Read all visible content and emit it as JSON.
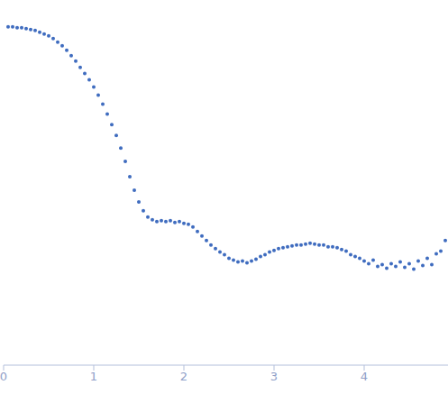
{
  "chart_data": {
    "type": "scatter",
    "color": "#3f6cbf",
    "marker": "circle",
    "tick_labels": "x",
    "xlim": [
      0,
      4.93
    ],
    "xticks": [
      0,
      1,
      2,
      3,
      4
    ],
    "ylim": [
      0.23,
      4.3
    ],
    "yticks": [
      1,
      2,
      3,
      4
    ],
    "x": [
      0.05,
      0.1,
      0.15,
      0.2,
      0.25,
      0.3,
      0.35,
      0.4,
      0.45,
      0.5,
      0.55,
      0.6,
      0.65,
      0.7,
      0.75,
      0.8,
      0.85,
      0.9,
      0.95,
      1.0,
      1.05,
      1.1,
      1.15,
      1.2,
      1.25,
      1.3,
      1.35,
      1.4,
      1.45,
      1.5,
      1.55,
      1.6,
      1.65,
      1.7,
      1.75,
      1.8,
      1.85,
      1.9,
      1.95,
      2.0,
      2.05,
      2.1,
      2.15,
      2.2,
      2.25,
      2.3,
      2.35,
      2.4,
      2.45,
      2.5,
      2.55,
      2.6,
      2.65,
      2.7,
      2.75,
      2.8,
      2.85,
      2.9,
      2.95,
      3.0,
      3.05,
      3.1,
      3.15,
      3.2,
      3.25,
      3.3,
      3.35,
      3.4,
      3.45,
      3.5,
      3.55,
      3.6,
      3.65,
      3.7,
      3.75,
      3.8,
      3.85,
      3.9,
      3.95,
      4.0,
      4.05,
      4.1,
      4.15,
      4.2,
      4.25,
      4.3,
      4.35,
      4.4,
      4.45,
      4.5,
      4.55,
      4.6,
      4.65,
      4.7,
      4.75,
      4.8,
      4.85,
      4.9
    ],
    "values": [
      4.0,
      4.0,
      3.99,
      3.99,
      3.98,
      3.97,
      3.96,
      3.94,
      3.92,
      3.9,
      3.87,
      3.83,
      3.79,
      3.74,
      3.68,
      3.62,
      3.55,
      3.48,
      3.41,
      3.33,
      3.24,
      3.14,
      3.03,
      2.91,
      2.79,
      2.65,
      2.5,
      2.33,
      2.18,
      2.05,
      1.95,
      1.88,
      1.85,
      1.83,
      1.84,
      1.83,
      1.84,
      1.82,
      1.83,
      1.81,
      1.8,
      1.77,
      1.72,
      1.67,
      1.62,
      1.57,
      1.53,
      1.49,
      1.46,
      1.42,
      1.4,
      1.38,
      1.39,
      1.37,
      1.39,
      1.41,
      1.44,
      1.46,
      1.49,
      1.51,
      1.53,
      1.54,
      1.55,
      1.56,
      1.57,
      1.57,
      1.58,
      1.59,
      1.58,
      1.57,
      1.57,
      1.55,
      1.55,
      1.54,
      1.52,
      1.5,
      1.46,
      1.44,
      1.42,
      1.39,
      1.36,
      1.4,
      1.33,
      1.35,
      1.31,
      1.36,
      1.33,
      1.38,
      1.32,
      1.36,
      1.3,
      1.39,
      1.34,
      1.42,
      1.35,
      1.47,
      1.5,
      1.62
    ]
  }
}
